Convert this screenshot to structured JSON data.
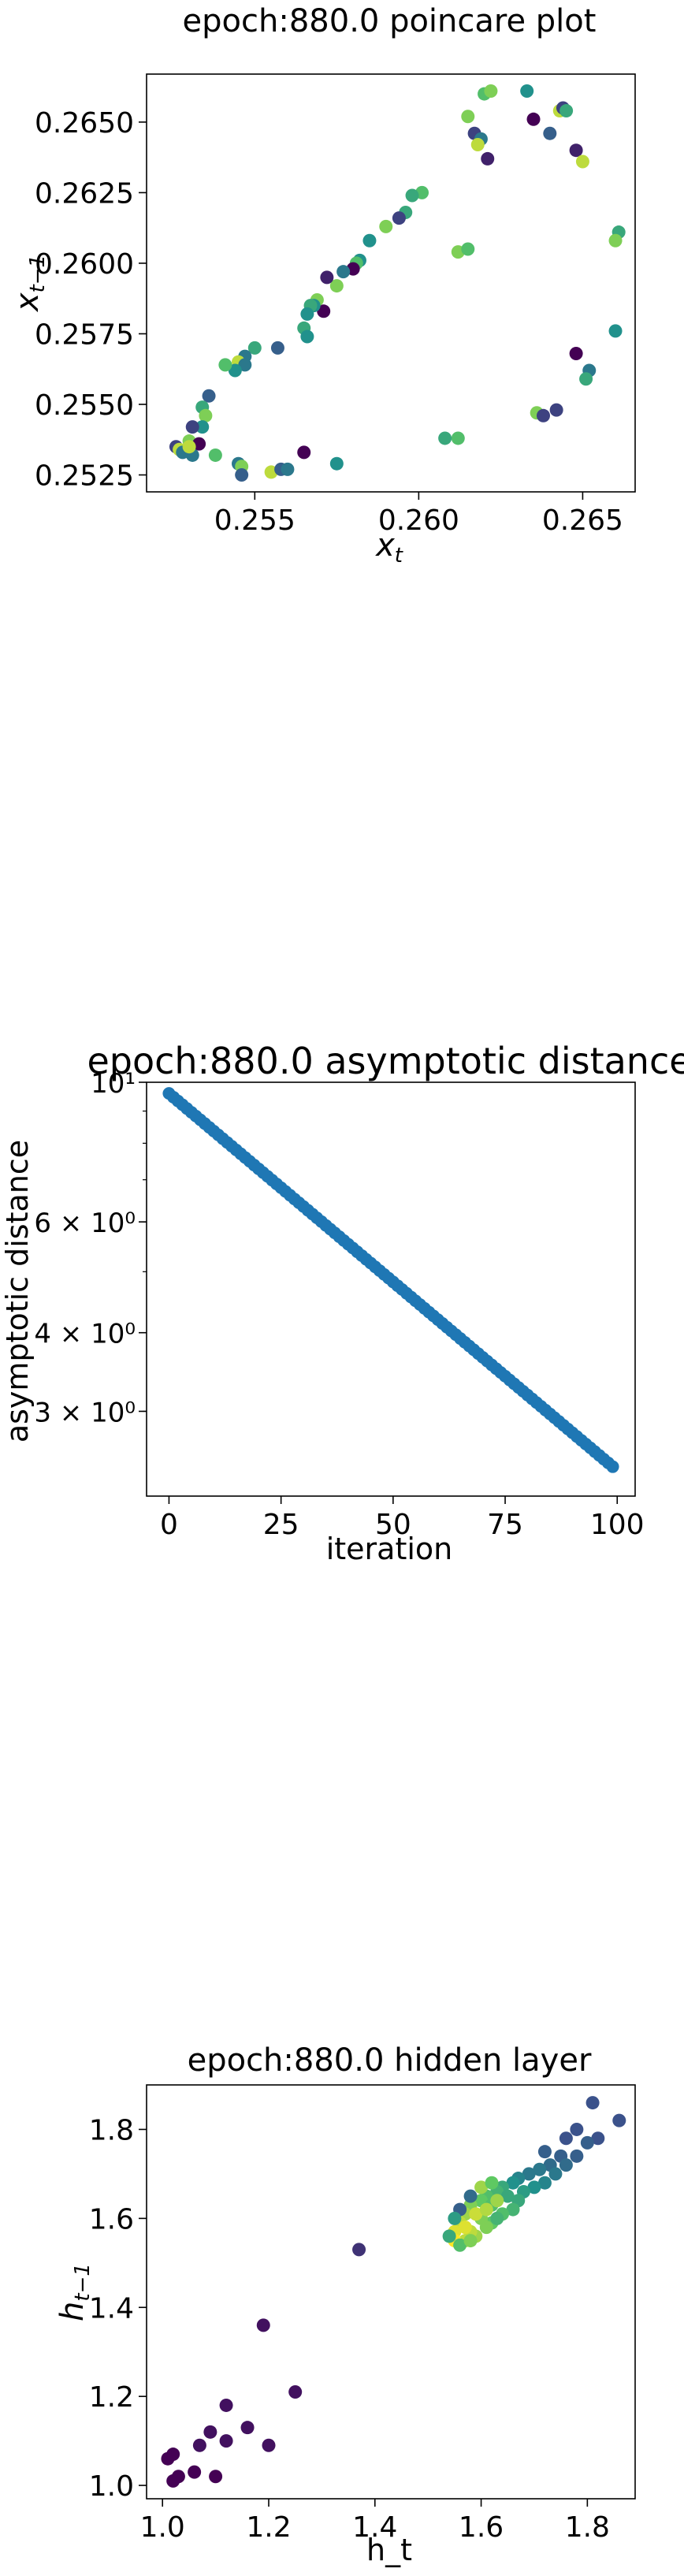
{
  "chart_data": [
    {
      "type": "scatter",
      "title": "epoch:880.0 poincare plot",
      "xlabel": "x_t",
      "ylabel": "x_{t-1}",
      "xlim": [
        0.2517,
        0.2666
      ],
      "ylim": [
        0.2519,
        0.2667
      ],
      "x_ticks": [
        0.255,
        0.26,
        0.265
      ],
      "x_tick_labels": [
        "0.255",
        "0.260",
        "0.265"
      ],
      "y_ticks": [
        0.2525,
        0.255,
        0.2575,
        0.26,
        0.2625,
        0.265
      ],
      "y_tick_labels": [
        "0.2525",
        "0.2550",
        "0.2575",
        "0.2600",
        "0.2625",
        "0.2650"
      ],
      "grid": false,
      "colormap": "viridis",
      "points": [
        [
          0.262,
          0.266,
          0.7
        ],
        [
          0.2622,
          0.2661,
          0.8
        ],
        [
          0.2633,
          0.2661,
          0.5
        ],
        [
          0.2615,
          0.2652,
          0.8
        ],
        [
          0.2617,
          0.2646,
          0.2
        ],
        [
          0.2619,
          0.2644,
          0.4
        ],
        [
          0.2618,
          0.2642,
          0.9
        ],
        [
          0.2621,
          0.2637,
          0.1
        ],
        [
          0.2635,
          0.2651,
          0.0
        ],
        [
          0.264,
          0.2646,
          0.3
        ],
        [
          0.2643,
          0.2654,
          0.9
        ],
        [
          0.2644,
          0.2655,
          0.2
        ],
        [
          0.2645,
          0.2654,
          0.6
        ],
        [
          0.2648,
          0.264,
          0.1
        ],
        [
          0.265,
          0.2636,
          0.9
        ],
        [
          0.2661,
          0.2611,
          0.6
        ],
        [
          0.266,
          0.2608,
          0.8
        ],
        [
          0.266,
          0.2576,
          0.5
        ],
        [
          0.2652,
          0.2562,
          0.4
        ],
        [
          0.2651,
          0.2559,
          0.6
        ],
        [
          0.2648,
          0.2568,
          0.0
        ],
        [
          0.2642,
          0.2548,
          0.2
        ],
        [
          0.2636,
          0.2547,
          0.8
        ],
        [
          0.2638,
          0.2546,
          0.2
        ],
        [
          0.2612,
          0.2538,
          0.7
        ],
        [
          0.2608,
          0.2538,
          0.6
        ],
        [
          0.2612,
          0.2604,
          0.8
        ],
        [
          0.2615,
          0.2605,
          0.7
        ],
        [
          0.2601,
          0.2625,
          0.7
        ],
        [
          0.2598,
          0.2624,
          0.6
        ],
        [
          0.2596,
          0.2618,
          0.6
        ],
        [
          0.2594,
          0.2616,
          0.2
        ],
        [
          0.259,
          0.2613,
          0.8
        ],
        [
          0.2585,
          0.2608,
          0.5
        ],
        [
          0.2582,
          0.2601,
          0.5
        ],
        [
          0.2581,
          0.26,
          0.7
        ],
        [
          0.258,
          0.2598,
          0.0
        ],
        [
          0.2577,
          0.2597,
          0.4
        ],
        [
          0.2575,
          0.2592,
          0.8
        ],
        [
          0.2572,
          0.2595,
          0.1
        ],
        [
          0.2571,
          0.2583,
          0.0
        ],
        [
          0.2569,
          0.2587,
          0.8
        ],
        [
          0.2568,
          0.2585,
          0.5
        ],
        [
          0.2567,
          0.2585,
          0.6
        ],
        [
          0.2566,
          0.2582,
          0.5
        ],
        [
          0.2565,
          0.2577,
          0.6
        ],
        [
          0.2566,
          0.2574,
          0.5
        ],
        [
          0.2557,
          0.257,
          0.3
        ],
        [
          0.255,
          0.257,
          0.6
        ],
        [
          0.2547,
          0.2567,
          0.4
        ],
        [
          0.2545,
          0.2565,
          0.9
        ],
        [
          0.2547,
          0.2564,
          0.4
        ],
        [
          0.2544,
          0.2562,
          0.5
        ],
        [
          0.2541,
          0.2564,
          0.7
        ],
        [
          0.2536,
          0.2553,
          0.3
        ],
        [
          0.2534,
          0.2549,
          0.6
        ],
        [
          0.2535,
          0.2546,
          0.8
        ],
        [
          0.2534,
          0.2542,
          0.5
        ],
        [
          0.2531,
          0.2542,
          0.2
        ],
        [
          0.253,
          0.2537,
          0.8
        ],
        [
          0.2533,
          0.2536,
          0.0
        ],
        [
          0.2526,
          0.2535,
          0.2
        ],
        [
          0.2527,
          0.2534,
          0.9
        ],
        [
          0.2528,
          0.2533,
          0.4
        ],
        [
          0.2531,
          0.2532,
          0.4
        ],
        [
          0.253,
          0.2535,
          0.9
        ],
        [
          0.2538,
          0.2532,
          0.7
        ],
        [
          0.2545,
          0.2529,
          0.4
        ],
        [
          0.2546,
          0.2528,
          0.8
        ],
        [
          0.2546,
          0.2525,
          0.3
        ],
        [
          0.2555,
          0.2526,
          0.9
        ],
        [
          0.2558,
          0.2527,
          0.3
        ],
        [
          0.256,
          0.2527,
          0.4
        ],
        [
          0.2565,
          0.2533,
          0.0
        ],
        [
          0.2575,
          0.2529,
          0.5
        ]
      ]
    },
    {
      "type": "scatter",
      "title": "epoch:880.0 asymptotic distance",
      "xlabel": "iteration",
      "ylabel": "asymptotic distance",
      "xlim": [
        -5,
        104
      ],
      "ylim": [
        2.2,
        10.0
      ],
      "y_scale": "log",
      "x_ticks": [
        0,
        25,
        50,
        75,
        100
      ],
      "x_tick_labels": [
        "0",
        "25",
        "50",
        "75",
        "100"
      ],
      "y_ticks": [
        3,
        4,
        6,
        10
      ],
      "y_tick_labels": [
        "3 × 10⁰",
        "4 × 10⁰",
        "6 × 10⁰",
        "10¹"
      ],
      "grid": false,
      "color": "#1f77b4",
      "start_value": 9.6,
      "end_value": 2.45,
      "num_points": 100
    },
    {
      "type": "scatter",
      "title": "epoch:880.0 hidden layer",
      "xlabel": "h_t",
      "ylabel": "h_{t-1}",
      "xlim": [
        0.97,
        1.89
      ],
      "ylim": [
        0.97,
        1.9
      ],
      "x_ticks": [
        1.0,
        1.2,
        1.4,
        1.6,
        1.8
      ],
      "x_tick_labels": [
        "1.0",
        "1.2",
        "1.4",
        "1.6",
        "1.8"
      ],
      "y_ticks": [
        1.0,
        1.2,
        1.4,
        1.6,
        1.8
      ],
      "y_tick_labels": [
        "1.0",
        "1.2",
        "1.4",
        "1.6",
        "1.8"
      ],
      "grid": false,
      "colormap": "viridis",
      "points": [
        [
          1.01,
          1.06,
          0.0
        ],
        [
          1.02,
          1.07,
          0.0
        ],
        [
          1.02,
          1.01,
          0.0
        ],
        [
          1.03,
          1.02,
          0.0
        ],
        [
          1.06,
          1.03,
          0.0
        ],
        [
          1.07,
          1.09,
          0.05
        ],
        [
          1.09,
          1.12,
          0.05
        ],
        [
          1.1,
          1.02,
          0.0
        ],
        [
          1.12,
          1.18,
          0.05
        ],
        [
          1.12,
          1.1,
          0.05
        ],
        [
          1.16,
          1.13,
          0.05
        ],
        [
          1.19,
          1.36,
          0.05
        ],
        [
          1.2,
          1.09,
          0.05
        ],
        [
          1.25,
          1.21,
          0.05
        ],
        [
          1.37,
          1.53,
          0.15
        ],
        [
          1.81,
          1.86,
          0.25
        ],
        [
          1.86,
          1.82,
          0.25
        ],
        [
          1.78,
          1.8,
          0.25
        ],
        [
          1.82,
          1.78,
          0.25
        ],
        [
          1.76,
          1.78,
          0.25
        ],
        [
          1.8,
          1.77,
          0.3
        ],
        [
          1.75,
          1.74,
          0.3
        ],
        [
          1.78,
          1.74,
          0.3
        ],
        [
          1.72,
          1.75,
          0.3
        ],
        [
          1.76,
          1.72,
          0.35
        ],
        [
          1.73,
          1.72,
          0.35
        ],
        [
          1.71,
          1.71,
          0.4
        ],
        [
          1.74,
          1.7,
          0.4
        ],
        [
          1.69,
          1.7,
          0.4
        ],
        [
          1.72,
          1.68,
          0.45
        ],
        [
          1.67,
          1.69,
          0.45
        ],
        [
          1.7,
          1.67,
          0.5
        ],
        [
          1.66,
          1.68,
          0.5
        ],
        [
          1.68,
          1.66,
          0.55
        ],
        [
          1.64,
          1.67,
          0.6
        ],
        [
          1.67,
          1.64,
          0.6
        ],
        [
          1.63,
          1.66,
          0.65
        ],
        [
          1.66,
          1.62,
          0.65
        ],
        [
          1.61,
          1.65,
          0.7
        ],
        [
          1.64,
          1.61,
          0.7
        ],
        [
          1.6,
          1.64,
          0.75
        ],
        [
          1.62,
          1.59,
          0.75
        ],
        [
          1.58,
          1.63,
          0.8
        ],
        [
          1.61,
          1.58,
          0.8
        ],
        [
          1.57,
          1.61,
          0.85
        ],
        [
          1.59,
          1.56,
          0.85
        ],
        [
          1.56,
          1.59,
          0.9
        ],
        [
          1.57,
          1.55,
          0.9
        ],
        [
          1.55,
          1.57,
          0.95
        ],
        [
          1.55,
          1.55,
          1.0
        ],
        [
          1.58,
          1.57,
          0.9
        ],
        [
          1.6,
          1.6,
          0.8
        ],
        [
          1.62,
          1.63,
          0.7
        ],
        [
          1.65,
          1.65,
          0.6
        ],
        [
          1.56,
          1.62,
          0.3
        ],
        [
          1.58,
          1.65,
          0.35
        ],
        [
          1.6,
          1.67,
          0.85
        ],
        [
          1.62,
          1.68,
          0.75
        ],
        [
          1.55,
          1.6,
          0.55
        ],
        [
          1.57,
          1.58,
          0.95
        ],
        [
          1.59,
          1.61,
          0.92
        ],
        [
          1.61,
          1.62,
          0.88
        ],
        [
          1.63,
          1.64,
          0.85
        ],
        [
          1.54,
          1.56,
          0.6
        ],
        [
          1.56,
          1.54,
          0.7
        ],
        [
          1.58,
          1.55,
          0.8
        ],
        [
          1.63,
          1.6,
          0.65
        ]
      ]
    }
  ]
}
